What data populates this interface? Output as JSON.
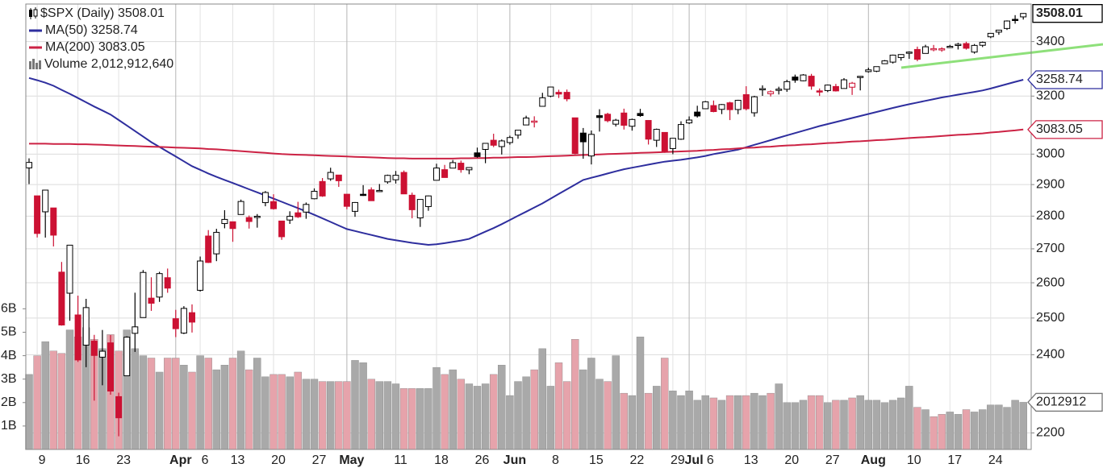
{
  "chart_data": {
    "type": "candlestick",
    "title": "$SPX (Daily)",
    "categories": [
      null,
      "9",
      null,
      null,
      null,
      null,
      "16",
      null,
      null,
      null,
      null,
      "23",
      null,
      null,
      null,
      null,
      null,
      null,
      "Apr",
      null,
      null,
      "6",
      null,
      null,
      null,
      "13",
      null,
      null,
      null,
      null,
      "20",
      null,
      null,
      null,
      null,
      "27",
      null,
      null,
      null,
      "May",
      null,
      null,
      null,
      null,
      null,
      "11",
      null,
      null,
      null,
      null,
      "18",
      null,
      null,
      null,
      null,
      "26",
      null,
      null,
      null,
      "Jun",
      null,
      null,
      null,
      null,
      "8",
      null,
      null,
      null,
      null,
      "15",
      null,
      null,
      null,
      null,
      "22",
      null,
      null,
      null,
      null,
      "29",
      null,
      "Jul",
      null,
      "6",
      null,
      null,
      null,
      null,
      "13",
      null,
      null,
      null,
      null,
      "20",
      null,
      null,
      null,
      null,
      "27",
      null,
      null,
      null,
      null,
      "Aug",
      null,
      null,
      null,
      null,
      "10",
      null,
      null,
      null,
      null,
      "17",
      null,
      null,
      null,
      null,
      "24",
      null,
      null,
      null,
      null
    ],
    "open": [
      2954.2,
      2863.9,
      2813.5,
      2825.6,
      2630.9,
      2569.99,
      2508.6,
      2425.7,
      2436.5,
      2393.5,
      2431.9,
      2290.7,
      2344.4,
      2457.8,
      2501.3,
      2555.9,
      2558.98,
      2614.7,
      2498.1,
      2458.5,
      2514.9,
      2578.3,
      2738.7,
      2685,
      2776.99,
      2782.5,
      2805.1,
      2795.6,
      2799.3,
      2842.4,
      2845.6,
      2784.8,
      2787.9,
      2810.4,
      2812.6,
      2854.7,
      2909.96,
      2918.5,
      2930.9,
      2869.1,
      2815,
      2868.9,
      2883.1,
      2878.3,
      2908.8,
      2915.5,
      2939.5,
      2865.9,
      2794.5,
      2829.95,
      2913.9,
      2948.6,
      2953.6,
      2969.95,
      2948,
      3004.1,
      3015.7,
      3046.6,
      3025.2,
      3038.8,
      3064.2,
      3098.9,
      3111.6,
      3163.8,
      3199.9,
      3213.3,
      3213.4,
      3123.5,
      3071,
      2993.8,
      3131,
      3136.1,
      3101.6,
      3140.3,
      3094.4,
      3138.7,
      3114.4,
      3046.6,
      3073.2,
      3018.6,
      3050.2,
      3105.9,
      3143.6,
      3155.3,
      3166.4,
      3153.1,
      3176.2,
      3152.5,
      3205.1,
      3141.1,
      3225.98,
      3208.4,
      3224.2,
      3224.3,
      3268.5,
      3254.9,
      3271.6,
      3218.6,
      3219.8,
      3234.3,
      3227.2,
      3231.8,
      3270.5,
      3288.3,
      3289.9,
      3317.4,
      3323.2,
      3340.1,
      3356,
      3370.3,
      3355.5,
      3372.95,
      3368.7,
      3380.9,
      3387,
      3392.5,
      3360.5,
      3386,
      3418.1,
      3435.95,
      3449.97,
      3485.1,
      3494.7
    ],
    "high": [
      2985.9,
      2863.9,
      2882.6,
      2825.6,
      2660.9,
      2711.3,
      2562.98,
      2553.9,
      2453.6,
      2466.97,
      2453,
      2300.7,
      2449.7,
      2571.4,
      2637,
      2615.9,
      2631.8,
      2641.4,
      2522.8,
      2533.2,
      2538.2,
      2676.9,
      2756.9,
      2760.8,
      2818.6,
      2782.5,
      2851.9,
      2801.9,
      2806.5,
      2879.2,
      2868.98,
      2785.5,
      2815.1,
      2844.9,
      2842.7,
      2887.7,
      2921.2,
      2954.9,
      2930.9,
      2869.1,
      2844.2,
      2898.2,
      2891.1,
      2901.9,
      2932.2,
      2944.3,
      2945.8,
      2874.1,
      2852.8,
      2865,
      2968.1,
      2964.2,
      2980.3,
      2978.5,
      2956.8,
      3021.7,
      3036.3,
      3068.7,
      3049.2,
      3062.2,
      3081.1,
      3130.9,
      3128.9,
      3211.7,
      3233.1,
      3222.7,
      3223.3,
      3123.5,
      3088.4,
      3079.8,
      3153.5,
      3141.2,
      3120,
      3155.5,
      3120.9,
      3154.9,
      3115,
      3086.3,
      3073.7,
      3053.9,
      3111.5,
      3128.4,
      3165.8,
      3182.6,
      3184.2,
      3171.8,
      3179.8,
      3186.8,
      3235.3,
      3200.95,
      3238.3,
      3220.4,
      3233.5,
      3258.6,
      3277.3,
      3279.3,
      3279.99,
      3227.3,
      3241.4,
      3243.7,
      3264.7,
      3250.9,
      3272.2,
      3302.7,
      3306.8,
      3330.8,
      3351,
      3352.5,
      3363.3,
      3381,
      3387.9,
      3387.2,
      3378.5,
      3387.6,
      3395.1,
      3399.5,
      3390.8,
      3399.96,
      3432.1,
      3444.2,
      3481.1,
      3501.4,
      3509.2
    ],
    "low": [
      2901.5,
      2734.4,
      2734,
      2707.2,
      2478.9,
      2492.4,
      2380.9,
      2367,
      2280.5,
      2319.8,
      2295.6,
      2191.9,
      2344.4,
      2407.5,
      2500.7,
      2520,
      2545.3,
      2571.2,
      2447.5,
      2455.8,
      2459.96,
      2574.6,
      2657.7,
      2663.3,
      2762.4,
      2721.2,
      2805.1,
      2761.5,
      2764.3,
      2830.9,
      2820.4,
      2727.1,
      2775.95,
      2794.3,
      2791.8,
      2852.9,
      2860.7,
      2912.2,
      2892.5,
      2821.6,
      2797.9,
      2863.6,
      2847.7,
      2876.5,
      2902.9,
      2903.4,
      2869.6,
      2793.2,
      2766.6,
      2816.8,
      2913.9,
      2922.4,
      2953.6,
      2938.6,
      2933.6,
      2988.2,
      2969.8,
      3023.4,
      2998.6,
      3031.5,
      3051.6,
      3098.9,
      3090.4,
      3163.8,
      3196,
      3193.1,
      3181.5,
      2999.5,
      2984.5,
      2965.7,
      3076.1,
      3108,
      3093.5,
      3083.1,
      3079.4,
      3127.1,
      3032.1,
      3024,
      3004.6,
      2999.7,
      3047.8,
      3101.97,
      3124.5,
      3155.3,
      3142.9,
      3136.5,
      3115.7,
      3136.2,
      3149.4,
      3127.7,
      3200.8,
      3198.6,
      3205.7,
      3215.2,
      3247.8,
      3253.1,
      3222.7,
      3200.4,
      3214.3,
      3216.2,
      3227.2,
      3204.1,
      3220.3,
      3284.5,
      3286.4,
      3317.4,
      3318.1,
      3328.7,
      3335.4,
      3326.4,
      3355.5,
      3363.4,
      3361.6,
      3379.2,
      3370.2,
      3369.7,
      3354.7,
      3379.3,
      3413.1,
      3425.8,
      3444.2,
      3468.4,
      3484.3
    ],
    "close": [
      2972.37,
      2746.56,
      2882.23,
      2741.38,
      2480.64,
      2711.02,
      2386.13,
      2529.19,
      2398.1,
      2409.39,
      2304.92,
      2237.4,
      2447.33,
      2475.56,
      2630.07,
      2541.47,
      2626.65,
      2584.59,
      2470.5,
      2526.9,
      2488.65,
      2663.68,
      2659.41,
      2749.98,
      2789.82,
      2761.63,
      2846.06,
      2783.36,
      2799.55,
      2874.56,
      2823.16,
      2736.56,
      2799.31,
      2797.8,
      2836.74,
      2878.48,
      2863.39,
      2939.51,
      2912.43,
      2830.71,
      2842.74,
      2868.44,
      2848.42,
      2881.19,
      2929.8,
      2930.19,
      2870.12,
      2820,
      2852.5,
      2863.7,
      2953.91,
      2922.94,
      2971.61,
      2948.51,
      2955.45,
      2991.77,
      3036.13,
      3029.73,
      3044.31,
      3055.73,
      3080.82,
      3122.87,
      3112.35,
      3193.93,
      3232.39,
      3207.18,
      3190.14,
      3002.1,
      3041.31,
      3066.59,
      3124.74,
      3113.49,
      3115.34,
      3097.74,
      3117.86,
      3131.29,
      3050.33,
      3083.76,
      3009.05,
      3053.24,
      3100.29,
      3115.86,
      3130.01,
      3179.72,
      3145.32,
      3169.94,
      3152.05,
      3185.04,
      3155.22,
      3197.52,
      3226.56,
      3215.57,
      3224.73,
      3251.84,
      3257.3,
      3276.02,
      3235.66,
      3215.63,
      3239.41,
      3218.44,
      3258.44,
      3246.22,
      3271.12,
      3294.61,
      3306.51,
      3327.77,
      3349.16,
      3351.28,
      3360.47,
      3333.69,
      3380.35,
      3373.43,
      3372.85,
      3381.99,
      3389.78,
      3374.85,
      3385.51,
      3397.16,
      3431.28,
      3443.62,
      3478.73,
      3484.55,
      3508.01
    ],
    "up_color": "#000000",
    "down_color": "#cc1133",
    "series": [
      {
        "name": "MA(50)",
        "color": "#2e2e9e",
        "values": [
          3265,
          3257,
          3248,
          3237,
          3222,
          3208,
          3193,
          3178,
          3163,
          3149,
          3135,
          3116,
          3097,
          3078,
          3059,
          3040,
          3024,
          3008,
          2992,
          2976,
          2960,
          2948,
          2936,
          2925,
          2915,
          2905,
          2895,
          2885,
          2875,
          2865,
          2855,
          2845,
          2835,
          2825,
          2815,
          2804,
          2793,
          2782,
          2771,
          2760,
          2754,
          2748,
          2742,
          2736,
          2730,
          2726,
          2722,
          2718,
          2715,
          2712,
          2714,
          2717,
          2721,
          2725,
          2730,
          2741,
          2752,
          2763,
          2775,
          2788,
          2801,
          2814,
          2827,
          2840,
          2855,
          2870,
          2885,
          2900,
          2915,
          2922,
          2929,
          2936,
          2943,
          2950,
          2955,
          2960,
          2965,
          2970,
          2975,
          2978,
          2981,
          2985,
          2989,
          2994,
          3000,
          3005,
          3010,
          3015,
          3023,
          3031,
          3039,
          3047,
          3055,
          3063,
          3071,
          3079,
          3087,
          3095,
          3102,
          3109,
          3116,
          3123,
          3130,
          3137,
          3144,
          3151,
          3158,
          3165,
          3171,
          3177,
          3183,
          3189,
          3195,
          3200,
          3205,
          3210,
          3215,
          3220,
          3227,
          3235,
          3243,
          3251,
          3258.74
        ]
      },
      {
        "name": "MA(200)",
        "color": "#cc2244",
        "values": [
          3035,
          3035,
          3035,
          3034,
          3034,
          3034,
          3033,
          3033,
          3032,
          3031,
          3030,
          3029,
          3028,
          3027,
          3026,
          3025,
          3024,
          3023,
          3022,
          3021,
          3020,
          3019,
          3017,
          3016,
          3014,
          3012,
          3010,
          3008,
          3006,
          3004,
          3002,
          3000,
          2999,
          2998,
          2997,
          2996,
          2995,
          2994,
          2993,
          2992,
          2991,
          2990,
          2989,
          2988,
          2987,
          2986,
          2986,
          2985,
          2985,
          2985,
          2985,
          2985,
          2985,
          2986,
          2986,
          2987,
          2987,
          2988,
          2988,
          2989,
          2990,
          2990,
          2991,
          2992,
          2993,
          2994,
          2995,
          2996,
          2997,
          2998,
          2999,
          3000,
          3001,
          3002,
          3003,
          3004,
          3005,
          3006,
          3007,
          3008,
          3009,
          3010,
          3011,
          3013,
          3014,
          3016,
          3017,
          3019,
          3021,
          3022,
          3024,
          3025,
          3027,
          3029,
          3030,
          3032,
          3033,
          3035,
          3037,
          3038,
          3040,
          3042,
          3043,
          3045,
          3047,
          3048,
          3050,
          3052,
          3054,
          3056,
          3057,
          3059,
          3061,
          3063,
          3065,
          3066,
          3068,
          3070,
          3073,
          3075,
          3078,
          3080,
          3083.05
        ]
      }
    ],
    "volume": {
      "name": "Volume",
      "up_color": "#a9a9a9",
      "down_color": "#e6a3ab",
      "label": "2,012,912,640",
      "axis_label": "2012912",
      "values": [
        3.2,
        4.0,
        4.6,
        4.2,
        4.1,
        5.1,
        4.8,
        5.2,
        4.7,
        4.3,
        4.9,
        4.2,
        5.1,
        4.3,
        4.0,
        3.9,
        3.3,
        3.9,
        3.9,
        3.6,
        3.3,
        4.0,
        3.9,
        3.4,
        3.6,
        3.9,
        4.2,
        3.4,
        3.9,
        3.1,
        3.2,
        3.2,
        3.1,
        3.3,
        3.0,
        3.0,
        2.9,
        2.9,
        2.9,
        2.9,
        3.8,
        3.7,
        3.0,
        2.9,
        2.9,
        2.8,
        2.6,
        2.6,
        2.6,
        2.6,
        3.5,
        3.2,
        3.4,
        3.0,
        2.8,
        2.7,
        2.8,
        3.2,
        3.6,
        2.3,
        2.9,
        3.1,
        3.4,
        4.3,
        2.7,
        3.7,
        2.9,
        4.7,
        3.4,
        3.9,
        3.0,
        2.9,
        4.0,
        2.4,
        2.3,
        4.8,
        2.4,
        2.7,
        3.9,
        2.5,
        2.3,
        2.5,
        2.1,
        2.3,
        2.2,
        2.1,
        2.3,
        2.3,
        2.3,
        2.4,
        2.3,
        2.4,
        2.8,
        2.0,
        2.0,
        2.1,
        2.3,
        2.3,
        2.0,
        2.1,
        2.1,
        2.2,
        2.3,
        2.1,
        2.1,
        2.0,
        2.1,
        2.2,
        2.7,
        1.8,
        1.7,
        1.4,
        1.5,
        1.6,
        1.5,
        1.7,
        1.6,
        1.7,
        1.9,
        1.9,
        1.8,
        2.1,
        2.01291264
      ]
    },
    "ylim": [
      2160,
      3545
    ],
    "log_y": true,
    "yticks": [
      2200,
      2400,
      2500,
      2600,
      2700,
      2800,
      2900,
      3000,
      3200,
      3400
    ],
    "volume_lim": [
      0,
      19
    ],
    "volume_ticks": [
      {
        "value": 1,
        "label": "1B"
      },
      {
        "value": 2,
        "label": "2B"
      },
      {
        "value": 3,
        "label": "3B"
      },
      {
        "value": 4,
        "label": "4B"
      },
      {
        "value": 5,
        "label": "5B"
      },
      {
        "value": 6,
        "label": "6B"
      }
    ],
    "grid": true
  }
}
